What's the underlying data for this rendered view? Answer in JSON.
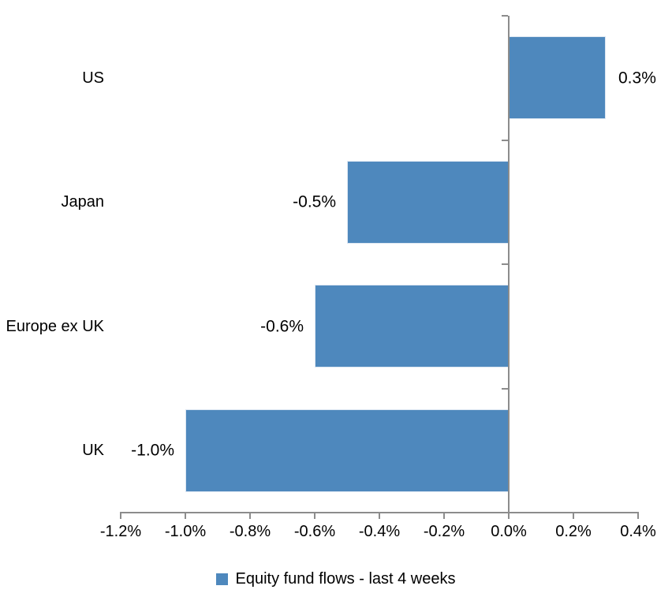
{
  "chart_data": {
    "type": "bar",
    "orientation": "horizontal",
    "title": "",
    "xlabel": "",
    "ylabel": "",
    "categories": [
      "US",
      "Japan",
      "Europe ex UK",
      "UK"
    ],
    "values": [
      0.3,
      -0.5,
      -0.6,
      -1.0
    ],
    "data_labels": [
      "0.3%",
      "-0.5%",
      "-0.6%",
      "-1.0%"
    ],
    "legend": "Equity fund flows - last 4 weeks",
    "legend_position": "bottom-center",
    "legend_marker": "square",
    "x_ticks": [
      -1.2,
      -1.0,
      -0.8,
      -0.6,
      -0.4,
      -0.2,
      0.0,
      0.2,
      0.4
    ],
    "x_tick_labels": [
      "-1.2%",
      "-1.0%",
      "-0.8%",
      "-0.6%",
      "-0.4%",
      "-0.2%",
      "0.0%",
      "0.2%",
      "0.4%"
    ],
    "xlim": [
      -1.2,
      0.4
    ],
    "grid": false,
    "colors": {
      "bar": "#4E88BD",
      "bar_border": "#DCE6F2",
      "axis": "#8C8C8C",
      "text": "#000000",
      "background": "#FFFFFF"
    }
  }
}
